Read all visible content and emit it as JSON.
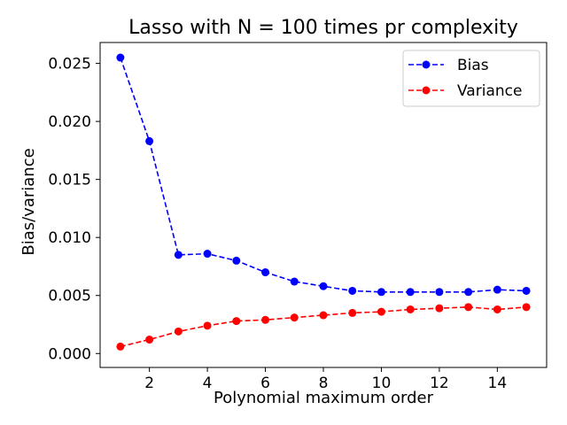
{
  "chart_data": {
    "type": "line",
    "title": "Lasso with N = 100 times pr complexity",
    "xlabel": "Polynomial maximum order",
    "ylabel": "Bias/variance",
    "xlim": [
      0.3,
      15.7
    ],
    "ylim": [
      -0.0012,
      0.0268
    ],
    "xticks": [
      2,
      4,
      6,
      8,
      10,
      12,
      14
    ],
    "xtick_labels": [
      "2",
      "4",
      "6",
      "8",
      "10",
      "12",
      "14"
    ],
    "yticks": [
      0.0,
      0.005,
      0.01,
      0.015,
      0.02,
      0.025
    ],
    "ytick_labels": [
      "0.000",
      "0.005",
      "0.010",
      "0.015",
      "0.020",
      "0.025"
    ],
    "grid": false,
    "legend_position": "top-right",
    "x": [
      1,
      2,
      3,
      4,
      5,
      6,
      7,
      8,
      9,
      10,
      11,
      12,
      13,
      14,
      15
    ],
    "series": [
      {
        "name": "Bias",
        "color": "#0000ff",
        "line_style": "dashed",
        "marker": "circle",
        "values": [
          0.0255,
          0.0183,
          0.0085,
          0.0086,
          0.008,
          0.007,
          0.0062,
          0.0058,
          0.0054,
          0.0053,
          0.0053,
          0.0053,
          0.0053,
          0.0055,
          0.0054
        ]
      },
      {
        "name": "Variance",
        "color": "#ff0000",
        "line_style": "dashed",
        "marker": "circle",
        "values": [
          0.0006,
          0.0012,
          0.0019,
          0.0024,
          0.0028,
          0.0029,
          0.0031,
          0.0033,
          0.0035,
          0.0036,
          0.0038,
          0.0039,
          0.004,
          0.0038,
          0.004
        ]
      }
    ]
  }
}
